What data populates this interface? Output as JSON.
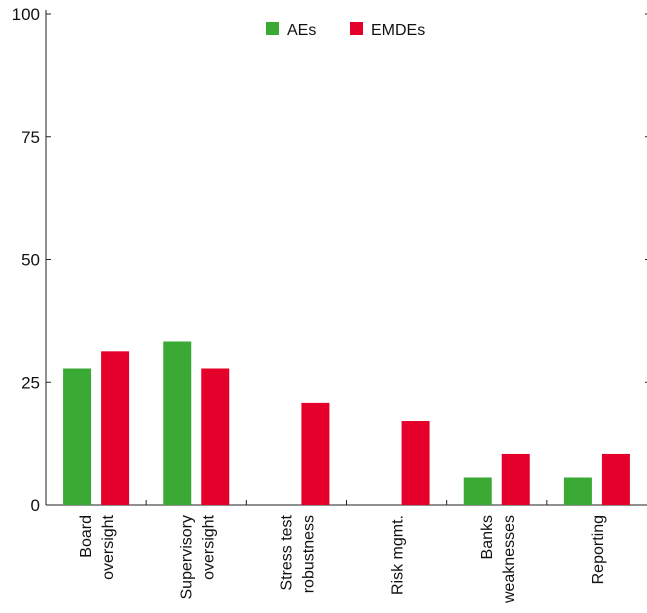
{
  "chart_data": {
    "type": "bar",
    "categories": [
      [
        "Board",
        "oversight"
      ],
      [
        "Supervisory",
        "oversight"
      ],
      [
        "Stress test",
        "robustness"
      ],
      [
        "Risk mgmt."
      ],
      [
        "Banks",
        "weaknesses"
      ],
      [
        "Reporting"
      ]
    ],
    "series": [
      {
        "name": "AEs",
        "color": "#3aaa35",
        "values": [
          27.8,
          33.3,
          0,
          0,
          5.6,
          5.6
        ]
      },
      {
        "name": "EMDEs",
        "color": "#e4002b",
        "values": [
          31.3,
          27.8,
          20.8,
          17.1,
          10.4,
          10.4
        ]
      }
    ],
    "yticks": [
      0,
      25,
      50,
      75,
      100
    ],
    "ylim": [
      0,
      100
    ],
    "legend": "top-center"
  }
}
